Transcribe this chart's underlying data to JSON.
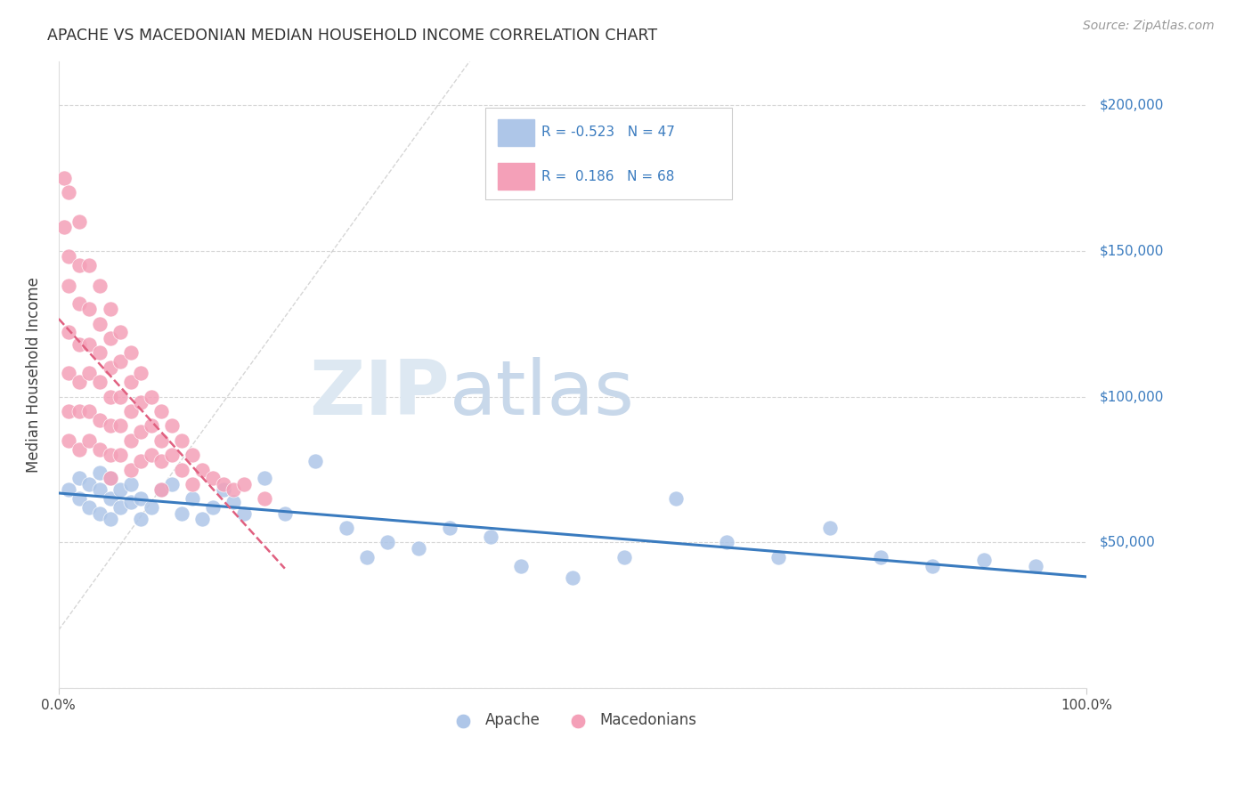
{
  "title": "APACHE VS MACEDONIAN MEDIAN HOUSEHOLD INCOME CORRELATION CHART",
  "source": "Source: ZipAtlas.com",
  "ylabel": "Median Household Income",
  "legend_apache": {
    "R": -0.523,
    "N": 47,
    "color": "#aec6e8",
    "line_color": "#3a7bbf"
  },
  "legend_macedonians": {
    "R": 0.186,
    "N": 68,
    "color": "#f4a0b8",
    "line_color": "#e06080"
  },
  "yticks": [
    0,
    50000,
    100000,
    150000,
    200000
  ],
  "ytick_labels": [
    "",
    "$50,000",
    "$100,000",
    "$150,000",
    "$200,000"
  ],
  "background_color": "#ffffff",
  "grid_color": "#cccccc",
  "apache_x": [
    0.01,
    0.02,
    0.02,
    0.03,
    0.03,
    0.04,
    0.04,
    0.04,
    0.05,
    0.05,
    0.05,
    0.06,
    0.06,
    0.07,
    0.07,
    0.08,
    0.08,
    0.09,
    0.1,
    0.11,
    0.12,
    0.13,
    0.14,
    0.15,
    0.16,
    0.17,
    0.18,
    0.2,
    0.22,
    0.25,
    0.28,
    0.3,
    0.32,
    0.35,
    0.38,
    0.42,
    0.45,
    0.5,
    0.55,
    0.6,
    0.65,
    0.7,
    0.75,
    0.8,
    0.85,
    0.9,
    0.95
  ],
  "apache_y": [
    68000,
    72000,
    65000,
    70000,
    62000,
    68000,
    74000,
    60000,
    65000,
    72000,
    58000,
    68000,
    62000,
    70000,
    64000,
    65000,
    58000,
    62000,
    68000,
    70000,
    60000,
    65000,
    58000,
    62000,
    68000,
    64000,
    60000,
    72000,
    60000,
    78000,
    55000,
    45000,
    50000,
    48000,
    55000,
    52000,
    42000,
    38000,
    45000,
    65000,
    50000,
    45000,
    55000,
    45000,
    42000,
    44000,
    42000
  ],
  "maced_x": [
    0.005,
    0.005,
    0.01,
    0.01,
    0.01,
    0.01,
    0.01,
    0.01,
    0.01,
    0.02,
    0.02,
    0.02,
    0.02,
    0.02,
    0.02,
    0.02,
    0.03,
    0.03,
    0.03,
    0.03,
    0.03,
    0.03,
    0.04,
    0.04,
    0.04,
    0.04,
    0.04,
    0.04,
    0.05,
    0.05,
    0.05,
    0.05,
    0.05,
    0.05,
    0.05,
    0.06,
    0.06,
    0.06,
    0.06,
    0.06,
    0.07,
    0.07,
    0.07,
    0.07,
    0.07,
    0.08,
    0.08,
    0.08,
    0.08,
    0.09,
    0.09,
    0.09,
    0.1,
    0.1,
    0.1,
    0.1,
    0.11,
    0.11,
    0.12,
    0.12,
    0.13,
    0.13,
    0.14,
    0.15,
    0.16,
    0.17,
    0.18,
    0.2
  ],
  "maced_y": [
    175000,
    158000,
    170000,
    148000,
    138000,
    122000,
    108000,
    95000,
    85000,
    160000,
    145000,
    132000,
    118000,
    105000,
    95000,
    82000,
    145000,
    130000,
    118000,
    108000,
    95000,
    85000,
    138000,
    125000,
    115000,
    105000,
    92000,
    82000,
    130000,
    120000,
    110000,
    100000,
    90000,
    80000,
    72000,
    122000,
    112000,
    100000,
    90000,
    80000,
    115000,
    105000,
    95000,
    85000,
    75000,
    108000,
    98000,
    88000,
    78000,
    100000,
    90000,
    80000,
    95000,
    85000,
    78000,
    68000,
    90000,
    80000,
    85000,
    75000,
    80000,
    70000,
    75000,
    72000,
    70000,
    68000,
    70000,
    65000
  ]
}
